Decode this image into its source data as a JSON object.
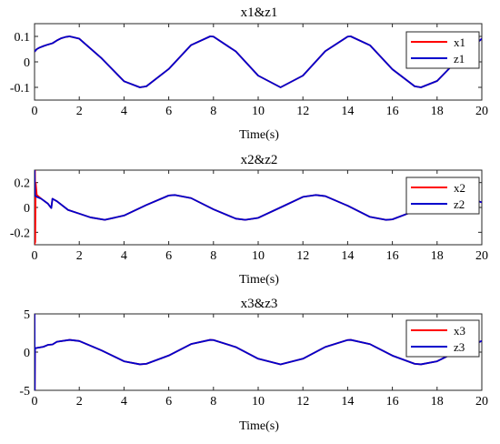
{
  "chart_data": [
    {
      "type": "line",
      "title": "x1&z1",
      "xlabel": "Time(s)",
      "ylabel": "",
      "xlim": [
        0,
        20
      ],
      "ylim": [
        -0.15,
        0.15
      ],
      "xticks": [
        "0",
        "2",
        "4",
        "6",
        "8",
        "10",
        "12",
        "14",
        "16",
        "18",
        "20"
      ],
      "yticks": [
        "0.1",
        "0",
        "-0.1"
      ],
      "legend_position": "top-right",
      "series": [
        {
          "name": "x1",
          "color": "#ff0000",
          "x": [
            0,
            0.1,
            0.2,
            0.4,
            0.6,
            0.8,
            1.0,
            1.2,
            1.4,
            1.57,
            2,
            3,
            4,
            4.71,
            5,
            6,
            7,
            7.85,
            8,
            9,
            10,
            11,
            11.0,
            12,
            13,
            14,
            14.14,
            15,
            16,
            17,
            17.28,
            18,
            19,
            20
          ],
          "y": [
            0.04,
            0.05,
            0.055,
            0.062,
            0.068,
            0.073,
            0.084,
            0.093,
            0.098,
            0.1,
            0.091,
            0.014,
            -0.076,
            -0.1,
            -0.096,
            -0.028,
            0.066,
            0.1,
            0.099,
            0.041,
            -0.054,
            -0.1,
            -0.1,
            -0.054,
            0.042,
            0.099,
            0.1,
            0.065,
            -0.029,
            -0.096,
            -0.1,
            -0.075,
            0.015,
            0.091
          ]
        },
        {
          "name": "z1",
          "color": "#0000cc",
          "x": [
            0,
            0.1,
            0.2,
            0.4,
            0.6,
            0.8,
            1.0,
            1.2,
            1.4,
            1.57,
            2,
            3,
            4,
            4.71,
            5,
            6,
            7,
            7.85,
            8,
            9,
            10,
            11,
            11.0,
            12,
            13,
            14,
            14.14,
            15,
            16,
            17,
            17.28,
            18,
            19,
            20
          ],
          "y": [
            0.04,
            0.05,
            0.055,
            0.062,
            0.068,
            0.073,
            0.084,
            0.093,
            0.098,
            0.1,
            0.091,
            0.014,
            -0.076,
            -0.1,
            -0.096,
            -0.028,
            0.066,
            0.1,
            0.099,
            0.041,
            -0.054,
            -0.1,
            -0.1,
            -0.054,
            0.042,
            0.099,
            0.1,
            0.065,
            -0.029,
            -0.096,
            -0.1,
            -0.075,
            0.015,
            0.091
          ]
        }
      ]
    },
    {
      "type": "line",
      "title": "x2&z2",
      "xlabel": "Time(s)",
      "ylabel": "",
      "xlim": [
        0,
        20
      ],
      "ylim": [
        -0.3,
        0.3
      ],
      "xticks": [
        "0",
        "2",
        "4",
        "6",
        "8",
        "10",
        "12",
        "14",
        "16",
        "18",
        "20"
      ],
      "yticks": [
        "0.2",
        "0",
        "-0.2"
      ],
      "legend_position": "top-right",
      "series": [
        {
          "name": "x2",
          "color": "#ff0000",
          "x": [
            0,
            0.01,
            0.02,
            0.03,
            0.05,
            0.1,
            0.3,
            0.6,
            0.75,
            0.8,
            0.85,
            1.0,
            1.5,
            2,
            2.5,
            3.14,
            4,
            5,
            6,
            6.28,
            7,
            8,
            9,
            9.42,
            10,
            11,
            12,
            12.57,
            13,
            14,
            15,
            15.71,
            16,
            17,
            18,
            19,
            20
          ],
          "y": [
            0.3,
            -0.3,
            0.3,
            -0.28,
            0.2,
            0.1,
            0.07,
            0.03,
            -0.005,
            0.07,
            0.065,
            0.05,
            -0.02,
            -0.05,
            -0.08,
            -0.1,
            -0.065,
            0.02,
            0.096,
            0.1,
            0.075,
            -0.015,
            -0.09,
            -0.1,
            -0.084,
            -0.0,
            0.085,
            0.1,
            0.091,
            0.014,
            -0.076,
            -0.1,
            -0.096,
            -0.028,
            0.066,
            0.1,
            0.041
          ]
        },
        {
          "name": "z2",
          "color": "#0000cc",
          "x": [
            0,
            0.02,
            0.05,
            0.1,
            0.3,
            0.6,
            0.75,
            0.8,
            0.85,
            1.0,
            1.5,
            2,
            2.5,
            3.14,
            4,
            5,
            6,
            6.28,
            7,
            8,
            9,
            9.42,
            10,
            11,
            12,
            12.57,
            13,
            14,
            15,
            15.71,
            16,
            17,
            18,
            19,
            20
          ],
          "y": [
            0.3,
            0.1,
            0.09,
            0.085,
            0.07,
            0.03,
            -0.005,
            0.07,
            0.065,
            0.05,
            -0.02,
            -0.05,
            -0.08,
            -0.1,
            -0.065,
            0.02,
            0.096,
            0.1,
            0.075,
            -0.015,
            -0.09,
            -0.1,
            -0.084,
            -0.0,
            0.085,
            0.1,
            0.091,
            0.014,
            -0.076,
            -0.1,
            -0.096,
            -0.028,
            0.066,
            0.1,
            0.041
          ]
        }
      ]
    },
    {
      "type": "line",
      "title": "x3&z3",
      "xlabel": "Time(s)",
      "ylabel": "",
      "xlim": [
        0,
        20
      ],
      "ylim": [
        -5,
        5
      ],
      "xticks": [
        "0",
        "2",
        "4",
        "6",
        "8",
        "10",
        "12",
        "14",
        "16",
        "18",
        "20"
      ],
      "yticks": [
        "5",
        "0",
        "-5"
      ],
      "legend_position": "top-right",
      "series": [
        {
          "name": "x3",
          "color": "#ff0000",
          "x": [
            0,
            0.01,
            0.02,
            0.04,
            0.1,
            0.2,
            0.4,
            0.6,
            0.8,
            1.0,
            1.57,
            2,
            3,
            4,
            4.71,
            5,
            6,
            7,
            7.85,
            8,
            9,
            10,
            11,
            12,
            13,
            14,
            14.14,
            15,
            16,
            17,
            17.28,
            18,
            19,
            20
          ],
          "y": [
            5,
            -5,
            0.4,
            0.5,
            0.55,
            0.6,
            0.7,
            0.95,
            1.0,
            1.35,
            1.6,
            1.45,
            0.22,
            -1.2,
            -1.6,
            -1.53,
            -0.45,
            1.05,
            1.6,
            1.58,
            0.66,
            -0.87,
            -1.6,
            -0.87,
            0.67,
            1.58,
            1.6,
            1.04,
            -0.46,
            -1.53,
            -1.6,
            -1.2,
            0.24,
            1.46
          ]
        },
        {
          "name": "z3",
          "color": "#0000cc",
          "x": [
            0,
            0.01,
            0.02,
            0.04,
            0.1,
            0.2,
            0.4,
            0.6,
            0.8,
            1.0,
            1.57,
            2,
            3,
            4,
            4.71,
            5,
            6,
            7,
            7.85,
            8,
            9,
            10,
            11,
            12,
            13,
            14,
            14.14,
            15,
            16,
            17,
            17.28,
            18,
            19,
            20
          ],
          "y": [
            5,
            -5,
            0.4,
            0.5,
            0.55,
            0.6,
            0.7,
            0.95,
            1.0,
            1.35,
            1.6,
            1.45,
            0.22,
            -1.2,
            -1.6,
            -1.53,
            -0.45,
            1.05,
            1.6,
            1.58,
            0.66,
            -0.87,
            -1.6,
            -0.87,
            0.67,
            1.58,
            1.6,
            1.04,
            -0.46,
            -1.53,
            -1.6,
            -1.2,
            0.24,
            1.46
          ]
        }
      ]
    }
  ]
}
